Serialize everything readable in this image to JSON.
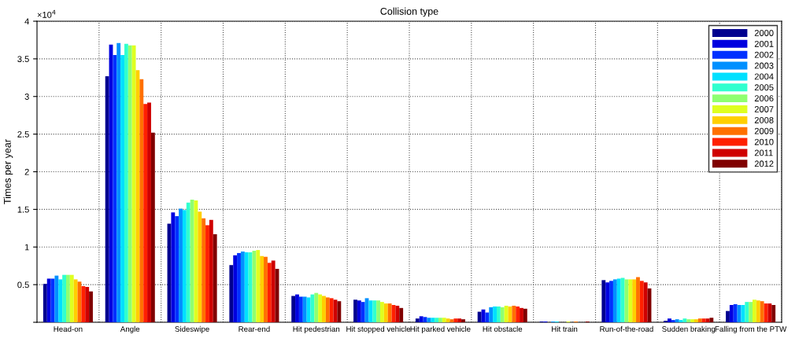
{
  "chart_data": {
    "type": "bar",
    "title": "Collision type",
    "ylabel": "Times per year",
    "annotations": [
      "×10$^{4}$"
    ],
    "categories": [
      "Head-on",
      "Angle",
      "Sideswipe",
      "Rear-end",
      "Hit pedestrian",
      "Hit stopped vehicle",
      "Hit parked vehicle",
      "Hit obstacle",
      "Hit train",
      "Run-of-the-road",
      "Sudden braking",
      "Falling from the PTW"
    ],
    "series": [
      {
        "name": "2000",
        "color": "#00008f",
        "values": [
          0.51,
          3.27,
          1.31,
          0.76,
          0.35,
          0.3,
          0.05,
          0.14,
          0.01,
          0.56,
          0.02,
          0.15
        ]
      },
      {
        "name": "2001",
        "color": "#0000df",
        "values": [
          0.58,
          3.69,
          1.46,
          0.89,
          0.37,
          0.29,
          0.08,
          0.17,
          0.01,
          0.53,
          0.05,
          0.23
        ]
      },
      {
        "name": "2002",
        "color": "#0030ff",
        "values": [
          0.58,
          3.55,
          1.41,
          0.92,
          0.34,
          0.27,
          0.07,
          0.13,
          0,
          0.55,
          0.03,
          0.24
        ]
      },
      {
        "name": "2003",
        "color": "#0090ff",
        "values": [
          0.62,
          3.71,
          1.51,
          0.94,
          0.34,
          0.32,
          0.06,
          0.2,
          0.01,
          0.57,
          0.04,
          0.23
        ]
      },
      {
        "name": "2004",
        "color": "#00e0ff",
        "values": [
          0.57,
          3.55,
          1.49,
          0.93,
          0.33,
          0.29,
          0.06,
          0.21,
          0.01,
          0.58,
          0.03,
          0.23
        ]
      },
      {
        "name": "2005",
        "color": "#30ffcf",
        "values": [
          0.63,
          3.7,
          1.59,
          0.93,
          0.37,
          0.29,
          0.06,
          0.21,
          0,
          0.59,
          0.05,
          0.27
        ]
      },
      {
        "name": "2006",
        "color": "#8fff70",
        "values": [
          0.63,
          3.68,
          1.63,
          0.95,
          0.39,
          0.29,
          0.06,
          0.2,
          0,
          0.57,
          0.04,
          0.27
        ]
      },
      {
        "name": "2007",
        "color": "#dfff20",
        "values": [
          0.63,
          3.68,
          1.62,
          0.96,
          0.37,
          0.27,
          0.06,
          0.22,
          0.01,
          0.57,
          0.04,
          0.3
        ]
      },
      {
        "name": "2008",
        "color": "#ffcf00",
        "values": [
          0.57,
          3.35,
          1.47,
          0.88,
          0.35,
          0.25,
          0.05,
          0.21,
          0,
          0.57,
          0.04,
          0.29
        ]
      },
      {
        "name": "2009",
        "color": "#ff7000",
        "values": [
          0.54,
          3.23,
          1.38,
          0.87,
          0.33,
          0.25,
          0.04,
          0.22,
          0.01,
          0.6,
          0.05,
          0.28
        ]
      },
      {
        "name": "2010",
        "color": "#ff2000",
        "values": [
          0.48,
          2.9,
          1.29,
          0.79,
          0.32,
          0.23,
          0.05,
          0.21,
          0,
          0.55,
          0.05,
          0.25
        ]
      },
      {
        "name": "2011",
        "color": "#cf0000",
        "values": [
          0.47,
          2.92,
          1.36,
          0.82,
          0.3,
          0.22,
          0.05,
          0.19,
          0,
          0.53,
          0.05,
          0.25
        ]
      },
      {
        "name": "2012",
        "color": "#800000",
        "values": [
          0.41,
          2.52,
          1.17,
          0.71,
          0.28,
          0.19,
          0.04,
          0.18,
          0.01,
          0.45,
          0.06,
          0.23
        ]
      }
    ],
    "ylim": [
      0,
      4
    ],
    "yticks": [
      {
        "value": 0,
        "label": null
      },
      0.5,
      1,
      1.5,
      2,
      2.5,
      3,
      3.5,
      4
    ],
    "grid": true,
    "legend": "top right"
  }
}
